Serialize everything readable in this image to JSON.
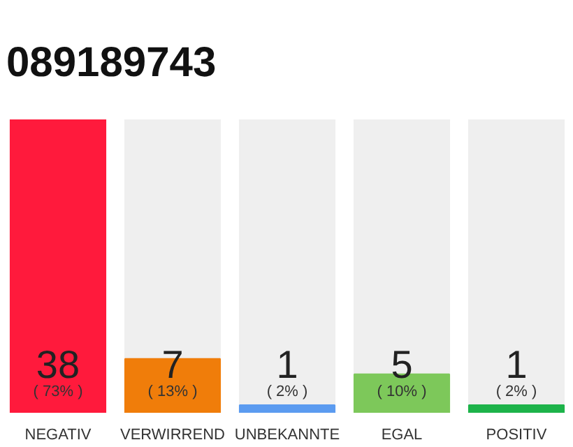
{
  "chart_data": {
    "type": "bar",
    "title": "089189743",
    "categories": [
      "NEGATIV",
      "VERWIRREND",
      "UNBEKANNTE",
      "EGAL",
      "POSITIV"
    ],
    "values": [
      38,
      7,
      1,
      5,
      1
    ],
    "colors": [
      "#ff1a3c",
      "#f07d0a",
      "#5b9bf0",
      "#7dc85a",
      "#1db34a"
    ],
    "ylim": [
      0,
      38
    ],
    "tick_labels": "x",
    "grid": false,
    "data_labels": true,
    "annotations": [
      "( 73% )",
      "( 13% )",
      "( 2% )",
      "( 10% )",
      "( 2% )"
    ]
  }
}
